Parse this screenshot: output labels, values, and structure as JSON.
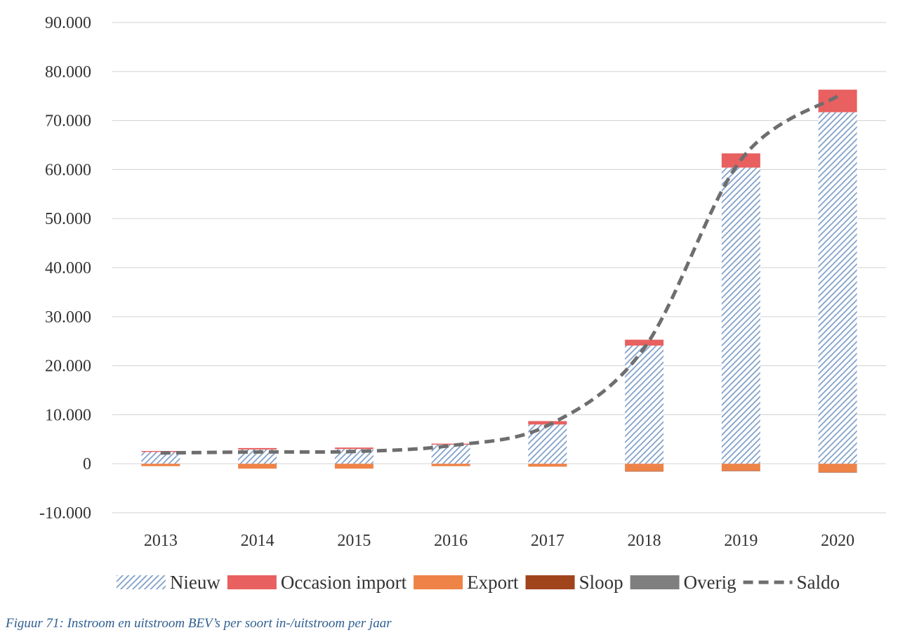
{
  "chart_data": {
    "type": "bar",
    "stacked": true,
    "categories": [
      "2013",
      "2014",
      "2015",
      "2016",
      "2017",
      "2018",
      "2019",
      "2020"
    ],
    "series": [
      {
        "name": "Nieuw",
        "color": "#7f9fc8",
        "pattern": "hatch",
        "values": [
          2400,
          2900,
          3000,
          3900,
          8000,
          24100,
          60400,
          71700
        ]
      },
      {
        "name": "Occasion import",
        "color": "#e8605f",
        "values": [
          200,
          300,
          300,
          200,
          700,
          1200,
          2900,
          4600
        ]
      },
      {
        "name": "Export",
        "color": "#ee8348",
        "values": [
          -500,
          -1000,
          -1000,
          -500,
          -600,
          -1500,
          -1400,
          -1700
        ]
      },
      {
        "name": "Sloop",
        "color": "#a0441c",
        "values": [
          0,
          0,
          0,
          0,
          0,
          -100,
          -100,
          -100
        ]
      },
      {
        "name": "Overig",
        "color": "#7f7f7f",
        "values": [
          0,
          0,
          0,
          0,
          0,
          0,
          0,
          0
        ]
      },
      {
        "name": "Saldo",
        "type": "line",
        "color": "#6e6e6e",
        "dashed": true,
        "values": [
          2200,
          2400,
          2500,
          3700,
          7800,
          23600,
          62000,
          75000
        ]
      }
    ],
    "ylim": [
      -10000,
      90000
    ],
    "yticks": [
      {
        "value": -10000,
        "label": "-10.000"
      },
      0,
      {
        "value": 10000,
        "label": "10.000"
      },
      {
        "value": 20000,
        "label": "20.000"
      },
      {
        "value": 30000,
        "label": "30.000"
      },
      {
        "value": 40000,
        "label": "40.000"
      },
      {
        "value": 50000,
        "label": "50.000"
      },
      {
        "value": 60000,
        "label": "60.000"
      },
      {
        "value": 70000,
        "label": "70.000"
      },
      {
        "value": 80000,
        "label": "80.000"
      },
      {
        "value": 90000,
        "label": "90.000"
      }
    ],
    "grid": true,
    "legend": "bottom",
    "caption": "Figuur 71: Instroom en uitstroom BEV’s per soort in-/uitstroom per jaar"
  }
}
